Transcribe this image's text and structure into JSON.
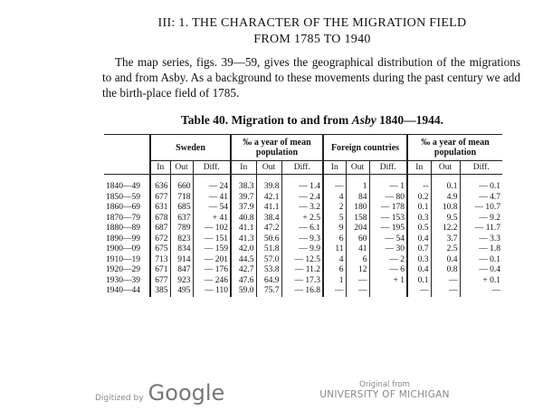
{
  "heading": {
    "line1": "III: 1. THE CHARACTER OF THE MIGRATION FIELD",
    "line2": "FROM 1785 TO 1940"
  },
  "paragraph": "The map series, figs. 39—59, gives the geographical distribution of the migrations to and from Asby. As a background to these movements during the past century we add the birth-place field of 1785.",
  "table": {
    "title": [
      "Table 40.  Migration to and from ",
      "Asby",
      " 1840—1944."
    ],
    "groups": [
      "Sweden",
      "‰ a year of mean population",
      "Foreign countries",
      "‰ a year of mean population"
    ],
    "subheaders": [
      "In",
      "Out",
      "Diff.",
      "In",
      "Out",
      "Diff.",
      "In",
      "Out",
      "Diff.",
      "In",
      "Out",
      "Diff."
    ],
    "rows": [
      [
        "1840—49",
        "636",
        "660",
        "— 24",
        "38.3",
        "39.8",
        "— 1.4",
        "—",
        "1",
        "— 1",
        "--",
        "0.1",
        "— 0.1"
      ],
      [
        "1850—59",
        "677",
        "718",
        "— 41",
        "39.7",
        "42.1",
        "— 2.4",
        "4",
        "84",
        "— 80",
        "0.2",
        "4.9",
        "— 4.7"
      ],
      [
        "1860—69",
        "631",
        "685",
        "— 54",
        "37.9",
        "41.1",
        "— 3.2",
        "2",
        "180",
        "— 178",
        "0.1",
        "10.8",
        "— 10.7"
      ],
      [
        "1870—79",
        "678",
        "637",
        "+ 41",
        "40.8",
        "38.4",
        "+ 2.5",
        "5",
        "158",
        "— 153",
        "0.3",
        "9.5",
        "— 9.2"
      ],
      [
        "1880—89",
        "687",
        "789",
        "— 102",
        "41.1",
        "47.2",
        "— 6.1",
        "9",
        "204",
        "— 195",
        "0.5",
        "12.2",
        "— 11.7"
      ],
      [
        "1890—99",
        "672",
        "823",
        "— 151",
        "41.3",
        "50.6",
        "— 9.3",
        "6",
        "60",
        "— 54",
        "0.4",
        "3.7",
        "— 3.3"
      ],
      [
        "1900—09",
        "675",
        "834",
        "— 159",
        "42.0",
        "51.8",
        "— 9.9",
        "11",
        "41",
        "— 30",
        "0.7",
        "2.5",
        "— 1.8"
      ],
      [
        "1910—19",
        "713",
        "914",
        "— 201",
        "44.5",
        "57.0",
        "— 12.5",
        "4",
        "6",
        "— 2",
        "0.3",
        "0.4",
        "— 0.1"
      ],
      [
        "1920—29",
        "671",
        "847",
        "— 176",
        "42.7",
        "53.8",
        "— 11.2",
        "6",
        "12",
        "— 6",
        "0.4",
        "0.8",
        "— 0.4"
      ],
      [
        "1930—39",
        "677",
        "923",
        "— 246",
        "47.6",
        "64.9",
        "— 17.3",
        "1",
        "—",
        "+ 1",
        "0.1",
        "—",
        "+ 0.1"
      ],
      [
        "1940—44",
        "385",
        "495",
        "— 110",
        "59.0",
        "75.7",
        "— 16.8",
        "—",
        "—",
        "",
        "—",
        "—",
        "—"
      ]
    ]
  },
  "footer": {
    "digitized_by": "Digitized by",
    "google": "Google",
    "original_from": "Original from",
    "university": "UNIVERSITY OF MICHIGAN"
  }
}
